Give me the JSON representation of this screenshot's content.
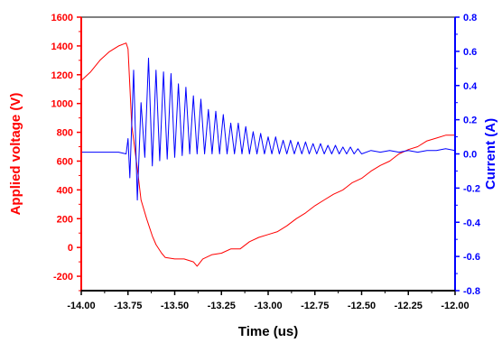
{
  "chart_data": {
    "type": "line",
    "title": "",
    "xlabel": "Time (us)",
    "ylabel_left": "Applied voltage (V)",
    "ylabel_right": "Current (A)",
    "xlim": [
      -14.0,
      -12.0
    ],
    "ylim_left": [
      -300,
      1600
    ],
    "ylim_right": [
      -0.8,
      0.8
    ],
    "x_ticks": [
      -14.0,
      -13.75,
      -13.5,
      -13.25,
      -13.0,
      -12.75,
      -12.5,
      -12.25,
      -12.0
    ],
    "x_tick_labels": [
      "-14.00",
      "-13.75",
      "-13.50",
      "-13.25",
      "-13.00",
      "-12.75",
      "-12.50",
      "-12.25",
      "-12.00"
    ],
    "y_left_ticks": [
      -200,
      0,
      200,
      400,
      600,
      800,
      1000,
      1200,
      1400,
      1600
    ],
    "y_left_tick_labels": [
      "-200",
      "0",
      "200",
      "400",
      "600",
      "800",
      "1000",
      "1200",
      "1400",
      "1600"
    ],
    "y_right_ticks": [
      -0.8,
      -0.6,
      -0.4,
      -0.2,
      0.0,
      0.2,
      0.4,
      0.6,
      0.8
    ],
    "y_right_tick_labels": [
      "-0.8",
      "-0.6",
      "-0.4",
      "-0.2",
      "0.0",
      "0.2",
      "0.4",
      "0.6",
      "0.8"
    ],
    "grid": false,
    "legend": "none",
    "series": [
      {
        "axis": "left",
        "color": "#ff0000",
        "x": [
          -14.0,
          -13.95,
          -13.9,
          -13.85,
          -13.8,
          -13.76,
          -13.75,
          -13.73,
          -13.7,
          -13.68,
          -13.65,
          -13.62,
          -13.6,
          -13.57,
          -13.55,
          -13.5,
          -13.45,
          -13.4,
          -13.38,
          -13.35,
          -13.3,
          -13.25,
          -13.2,
          -13.15,
          -13.1,
          -13.05,
          -13.0,
          -12.95,
          -12.9,
          -12.85,
          -12.8,
          -12.75,
          -12.7,
          -12.65,
          -12.6,
          -12.55,
          -12.5,
          -12.45,
          -12.4,
          -12.35,
          -12.3,
          -12.25,
          -12.2,
          -12.15,
          -12.1,
          -12.05,
          -12.0
        ],
        "y": [
          1160,
          1220,
          1300,
          1360,
          1400,
          1420,
          1380,
          850,
          550,
          330,
          200,
          80,
          20,
          -40,
          -70,
          -80,
          -80,
          -100,
          -130,
          -80,
          -50,
          -40,
          -10,
          -10,
          40,
          70,
          90,
          110,
          150,
          200,
          240,
          290,
          330,
          370,
          400,
          450,
          480,
          530,
          570,
          600,
          650,
          680,
          700,
          740,
          760,
          780,
          780
        ]
      },
      {
        "axis": "right",
        "color": "#0000ff",
        "x": [
          -14.0,
          -13.9,
          -13.8,
          -13.76,
          -13.75,
          -13.74,
          -13.72,
          -13.7,
          -13.68,
          -13.66,
          -13.64,
          -13.62,
          -13.6,
          -13.58,
          -13.56,
          -13.54,
          -13.52,
          -13.5,
          -13.48,
          -13.46,
          -13.44,
          -13.42,
          -13.4,
          -13.38,
          -13.36,
          -13.34,
          -13.32,
          -13.3,
          -13.28,
          -13.26,
          -13.24,
          -13.22,
          -13.2,
          -13.18,
          -13.16,
          -13.14,
          -13.12,
          -13.1,
          -13.08,
          -13.06,
          -13.04,
          -13.02,
          -13.0,
          -12.98,
          -12.96,
          -12.94,
          -12.92,
          -12.9,
          -12.88,
          -12.86,
          -12.84,
          -12.82,
          -12.8,
          -12.78,
          -12.76,
          -12.74,
          -12.72,
          -12.7,
          -12.68,
          -12.66,
          -12.64,
          -12.62,
          -12.6,
          -12.58,
          -12.56,
          -12.54,
          -12.52,
          -12.5,
          -12.45,
          -12.4,
          -12.35,
          -12.3,
          -12.25,
          -12.2,
          -12.15,
          -12.1,
          -12.05,
          -12.0
        ],
        "y": [
          0.01,
          0.01,
          0.01,
          0.0,
          0.09,
          -0.14,
          0.49,
          -0.27,
          0.3,
          -0.02,
          0.56,
          -0.07,
          0.49,
          -0.04,
          0.48,
          -0.03,
          0.47,
          -0.02,
          0.41,
          -0.01,
          0.39,
          0.0,
          0.34,
          0.0,
          0.32,
          0.0,
          0.26,
          0.0,
          0.25,
          0.0,
          0.23,
          0.0,
          0.18,
          0.0,
          0.18,
          0.0,
          0.16,
          0.0,
          0.13,
          0.0,
          0.12,
          0.0,
          0.1,
          0.0,
          0.1,
          0.0,
          0.08,
          0.0,
          0.08,
          0.0,
          0.07,
          0.0,
          0.07,
          0.0,
          0.06,
          0.0,
          0.06,
          0.0,
          0.05,
          0.0,
          0.05,
          0.0,
          0.04,
          0.0,
          0.04,
          0.0,
          0.03,
          0.0,
          0.02,
          0.01,
          0.02,
          0.01,
          0.02,
          0.01,
          0.02,
          0.02,
          0.03,
          0.02
        ]
      }
    ],
    "colors": {
      "left_axis": "#ff0000",
      "right_axis": "#0000ff",
      "bottom_axis": "#000000"
    }
  }
}
